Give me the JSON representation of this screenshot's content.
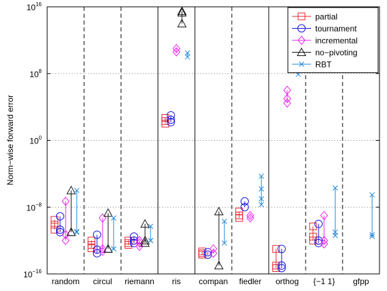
{
  "chart_data": {
    "type": "scatter",
    "title": "",
    "xlabel": "",
    "ylabel": "Norm−wise forward error",
    "yscale": "log",
    "ylim": [
      1e-16,
      1e+16
    ],
    "y_ticks": [
      {
        "value": 1e+16,
        "base": "10",
        "exp": "16"
      },
      {
        "value": 100000000.0,
        "base": "10",
        "exp": "8"
      },
      {
        "value": 1,
        "base": "10",
        "exp": "0"
      },
      {
        "value": 1e-08,
        "base": "10",
        "exp": "−8"
      },
      {
        "value": 1e-16,
        "base": "10",
        "exp": "−16"
      }
    ],
    "grid": "y-major dotted",
    "categories": [
      "random",
      "circul",
      "riemann",
      "ris",
      "compan",
      "fiedler",
      "orthog",
      "{−1 1}",
      "gfpp"
    ],
    "category_separators": [
      {
        "after": 0,
        "style": "dashed"
      },
      {
        "after": 1,
        "style": "dashed"
      },
      {
        "after": 2,
        "style": "solid"
      },
      {
        "after": 3,
        "style": "solid"
      },
      {
        "after": 4,
        "style": "dashed"
      },
      {
        "after": 5,
        "style": "solid"
      },
      {
        "after": 6,
        "style": "dashed"
      },
      {
        "after": 7,
        "style": "dashed"
      }
    ],
    "legend_position": "top-right",
    "series": [
      {
        "name": "partial",
        "marker": "square",
        "color": "#e8262f",
        "offset": -0.4,
        "groups": [
          [
            3e-10,
            2e-11,
            8e-11
          ],
          [
            1.2e-13,
            3e-13,
            1e-12
          ],
          [
            1e-12,
            3e-13,
            5e-13
          ],
          [
            500.0,
            200.0,
            100.0
          ],
          [
            2e-14,
            3e-14,
            5e-14
          ],
          [
            3e-09,
            1e-09,
            5e-10
          ],
          [
            1e-13,
            1e-15,
            5e-16
          ],
          [
            5e-11,
            3e-12,
            1e-12
          ],
          []
        ]
      },
      {
        "name": "tournament",
        "marker": "circle",
        "color": "#1515e0",
        "offset": -0.2,
        "groups": [
          [
            8e-10,
            2e-11,
            1e-11
          ],
          [
            5e-12,
            8e-14,
            3e-14
          ],
          [
            3e-12,
            1e-12,
            5e-13
          ],
          [
            1000.0,
            300.0,
            150.0
          ],
          [
            4e-14,
            2e-14
          ],
          [
            5e-08,
            1e-08
          ],
          [
            1e-13,
            1e-15,
            5e-16
          ],
          [
            1e-10,
            1e-12,
            5e-13
          ],
          []
        ]
      },
      {
        "name": "incremental",
        "marker": "diamond",
        "color": "#ee22ee",
        "offset": 0.0,
        "groups": [
          [
            5e-08,
            1e-12,
            5e-12
          ],
          [
            5e-10,
            1e-13,
            5e-14
          ],
          [
            5e-13,
            2e-13,
            1e-12
          ],
          [
            100000000000.0,
            40000000000.0
          ],
          [
            1e-13,
            3e-14
          ],
          [
            1e-09,
            5e-10
          ],
          [
            1000000.0,
            100000.0,
            30000.0
          ],
          [
            1e-09,
            1e-12,
            4e-13
          ],
          []
        ]
      },
      {
        "name": "no−pivoting",
        "marker": "triangle",
        "color": "#111111",
        "offset": 0.2,
        "groups": [
          [
            1e-06,
            1e-11,
            1e-11
          ],
          [
            2e-09,
            1e-13,
            1e-13
          ],
          [
            1e-10,
            1e-12,
            5e-13
          ],
          [
            2000000000000000.0,
            100000000000000.0,
            3000000000000000.0
          ],
          [
            3e-09,
            1e-15
          ],
          [],
          [
            10000000000000.0,
            3000000000000.0
          ],
          [],
          []
        ]
      },
      {
        "name": "RBT",
        "marker": "x",
        "color": "#1e88dd",
        "offset": 0.4,
        "groups": [
          [
            1e-06,
            1e-11,
            1.2e-11
          ],
          [
            5e-10,
            1e-13,
            1e-13
          ],
          [
            5e-11,
            1e-12,
            1e-12
          ],
          [
            30000000000.0,
            10000000000.0
          ],
          [
            2e-10,
            5e-13
          ],
          [
            5e-05,
            1.5e-06,
            1e-07,
            2e-08
          ],
          [
            3000000000.0,
            80000000.0
          ],
          [
            2e-06,
            1e-11,
            4e-12
          ],
          [
            3e-07,
            5e-12,
            3e-12
          ]
        ]
      }
    ]
  }
}
